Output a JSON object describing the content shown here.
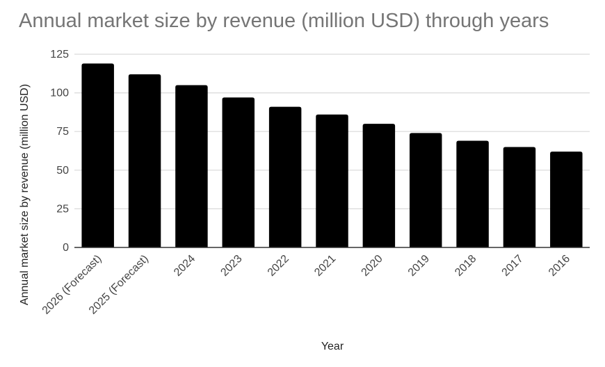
{
  "chart_data": {
    "type": "bar",
    "title": "Annual market size by revenue (million USD) through years",
    "xlabel": "Year",
    "ylabel": "Annual market size by revenue (million USD)",
    "categories": [
      "2026 (Forecast)",
      "2025 (Forecast)",
      "2024",
      "2023",
      "2022",
      "2021",
      "2020",
      "2019",
      "2018",
      "2017",
      "2016"
    ],
    "values": [
      119,
      112,
      105,
      97,
      91,
      86,
      80,
      74,
      69,
      65,
      62
    ],
    "ylim": [
      0,
      125
    ],
    "yticks": [
      0,
      25,
      50,
      75,
      100,
      125
    ],
    "grid": true,
    "legend": "none",
    "colors": {
      "bar": "#000000",
      "grid": "#d9d9d9",
      "axis": "#333333",
      "title": "#757575"
    }
  }
}
